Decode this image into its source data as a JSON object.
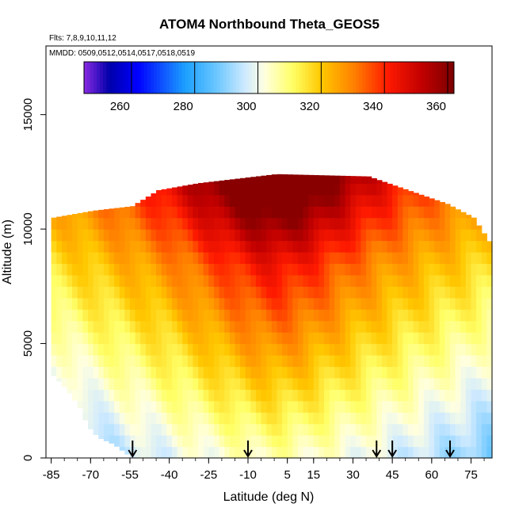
{
  "chart_data": {
    "type": "heatmap",
    "title": "ATOM4 Northbound Theta_GEOS5",
    "flights_note": "Flts: 7,8,9,10,11,12",
    "dates_note": "MMDD: 0509,0512,0514,0517,0518,0519",
    "xlabel": "Latitude (deg N)",
    "ylabel": "Altitude (m)",
    "xlim": [
      -87,
      83
    ],
    "ylim": [
      0,
      18000
    ],
    "x_ticks": [
      {
        "value": -85,
        "label": "-85"
      },
      {
        "value": -70,
        "label": "-70"
      },
      {
        "value": -55,
        "label": "-55"
      },
      {
        "value": -40,
        "label": "-40"
      },
      {
        "value": -25,
        "label": "-25"
      },
      {
        "value": -10,
        "label": "-10"
      },
      {
        "value": 5,
        "label": "5"
      },
      {
        "value": 15,
        "label": "15"
      },
      {
        "value": 30,
        "label": "30"
      },
      {
        "value": 45,
        "label": "45"
      },
      {
        "value": 60,
        "label": "60"
      },
      {
        "value": 75,
        "label": "75"
      }
    ],
    "y_ticks": [
      {
        "value": 0,
        "label": "0"
      },
      {
        "value": 5000,
        "label": "5000"
      },
      {
        "value": 10000,
        "label": "10000"
      },
      {
        "value": 15000,
        "label": "15000"
      }
    ],
    "colorbar": {
      "min": 245,
      "max": 362,
      "ticks": [
        {
          "value": 260,
          "label": "260"
        },
        {
          "value": 280,
          "label": "280"
        },
        {
          "value": 300,
          "label": "300"
        },
        {
          "value": 320,
          "label": "320"
        },
        {
          "value": 340,
          "label": "340"
        },
        {
          "value": 360,
          "label": "360"
        }
      ],
      "stops": [
        {
          "value": 245,
          "color": "#8a2be2"
        },
        {
          "value": 253,
          "color": "#0000aa"
        },
        {
          "value": 262,
          "color": "#0000ff"
        },
        {
          "value": 277,
          "color": "#1ca0ff"
        },
        {
          "value": 287,
          "color": "#6cc7ff"
        },
        {
          "value": 296,
          "color": "#cfeaff"
        },
        {
          "value": 302,
          "color": "#ffffe0"
        },
        {
          "value": 311,
          "color": "#ffff66"
        },
        {
          "value": 320,
          "color": "#ffc800"
        },
        {
          "value": 331,
          "color": "#ff7b00"
        },
        {
          "value": 341,
          "color": "#ff1a00"
        },
        {
          "value": 352,
          "color": "#c00000"
        },
        {
          "value": 362,
          "color": "#7a0000"
        }
      ]
    },
    "tropopause_km_profile": [
      {
        "lat": -85,
        "z": 10.5
      },
      {
        "lat": -70,
        "z": 10.8
      },
      {
        "lat": -55,
        "z": 11.0
      },
      {
        "lat": -45,
        "z": 11.7
      },
      {
        "lat": -30,
        "z": 12.0
      },
      {
        "lat": 0,
        "z": 12.4
      },
      {
        "lat": 35,
        "z": 12.3
      },
      {
        "lat": 50,
        "z": 11.7
      },
      {
        "lat": 65,
        "z": 11.1
      },
      {
        "lat": 75,
        "z": 10.5
      },
      {
        "lat": 82,
        "z": 9.3
      }
    ],
    "surface_km_profile": [
      {
        "lat": -85,
        "z": 3.6
      },
      {
        "lat": -80,
        "z": 3.0
      },
      {
        "lat": -75,
        "z": 2.2
      },
      {
        "lat": -72,
        "z": 1.4
      },
      {
        "lat": -68,
        "z": 0.9
      },
      {
        "lat": -62,
        "z": 0.6
      },
      {
        "lat": -55,
        "z": 0.0
      },
      {
        "lat": 80,
        "z": 0.0
      }
    ],
    "arrow_latitudes": [
      -54,
      -10,
      39,
      45,
      67
    ]
  }
}
